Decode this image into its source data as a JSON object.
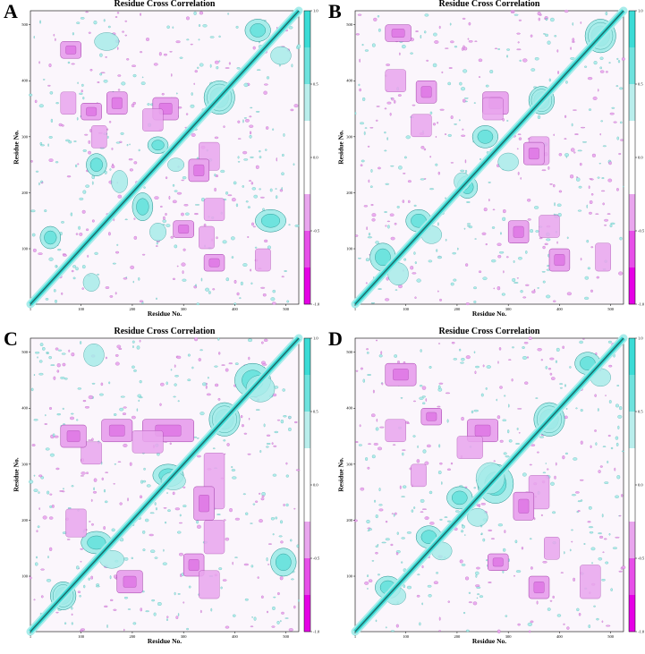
{
  "chart_data": [
    {
      "panel": "A",
      "type": "heatmap",
      "title": "Residue Cross Correlation",
      "xlabel": "Residue No.",
      "ylabel": "Residue No.",
      "xlim": [
        1,
        525
      ],
      "ylim": [
        1,
        525
      ],
      "x_ticks": [
        "1",
        "100",
        "200",
        "300",
        "400",
        "500"
      ],
      "y_ticks": [
        "100",
        "200",
        "300",
        "400",
        "500"
      ],
      "colorbar": {
        "range": [
          -1.0,
          1.0
        ],
        "ticks": [
          "1.0",
          "0.5",
          "0.0",
          "-0.5",
          "-1.0"
        ]
      },
      "positive_regions": [
        {
          "x": [
            340,
            400
          ],
          "y": [
            340,
            400
          ]
        },
        {
          "x": [
            230,
            270
          ],
          "y": [
            270,
            300
          ]
        },
        {
          "x": [
            200,
            240
          ],
          "y": [
            150,
            200
          ]
        },
        {
          "x": [
            110,
            150
          ],
          "y": [
            230,
            270
          ]
        },
        {
          "x": [
            20,
            60
          ],
          "y": [
            100,
            140
          ]
        },
        {
          "x": [
            420,
            470
          ],
          "y": [
            470,
            510
          ]
        },
        {
          "x": [
            440,
            500
          ],
          "y": [
            130,
            170
          ]
        }
      ],
      "negative_regions": [
        {
          "x": [
            240,
            290
          ],
          "y": [
            330,
            370
          ]
        },
        {
          "x": [
            310,
            350
          ],
          "y": [
            220,
            260
          ]
        },
        {
          "x": [
            150,
            190
          ],
          "y": [
            340,
            380
          ]
        },
        {
          "x": [
            100,
            140
          ],
          "y": [
            330,
            360
          ]
        },
        {
          "x": [
            340,
            380
          ],
          "y": [
            60,
            90
          ]
        },
        {
          "x": [
            60,
            100
          ],
          "y": [
            440,
            470
          ]
        },
        {
          "x": [
            280,
            320
          ],
          "y": [
            120,
            150
          ]
        }
      ]
    },
    {
      "panel": "B",
      "type": "heatmap",
      "title": "Residue Cross Correlation",
      "xlabel": "Residue No.",
      "ylabel": "Residue No.",
      "xlim": [
        1,
        525
      ],
      "ylim": [
        1,
        525
      ],
      "x_ticks": [
        "1",
        "100",
        "200",
        "300",
        "400",
        "500"
      ],
      "y_ticks": [
        "100",
        "200",
        "300",
        "400",
        "500"
      ],
      "colorbar": {
        "range": [
          -1.0,
          1.0
        ],
        "ticks": [
          "1.0",
          "0.5",
          "0.0",
          "-0.5",
          "-1.0"
        ]
      },
      "positive_regions": [
        {
          "x": [
            340,
            390
          ],
          "y": [
            340,
            390
          ]
        },
        {
          "x": [
            230,
            280
          ],
          "y": [
            280,
            320
          ]
        },
        {
          "x": [
            200,
            240
          ],
          "y": [
            190,
            230
          ]
        },
        {
          "x": [
            30,
            80
          ],
          "y": [
            60,
            110
          ]
        },
        {
          "x": [
            100,
            150
          ],
          "y": [
            130,
            170
          ]
        },
        {
          "x": [
            450,
            510
          ],
          "y": [
            450,
            510
          ]
        }
      ],
      "negative_regions": [
        {
          "x": [
            250,
            300
          ],
          "y": [
            340,
            380
          ]
        },
        {
          "x": [
            330,
            370
          ],
          "y": [
            250,
            290
          ]
        },
        {
          "x": [
            300,
            340
          ],
          "y": [
            110,
            150
          ]
        },
        {
          "x": [
            120,
            160
          ],
          "y": [
            360,
            400
          ]
        },
        {
          "x": [
            60,
            110
          ],
          "y": [
            470,
            500
          ]
        },
        {
          "x": [
            380,
            420
          ],
          "y": [
            60,
            100
          ]
        }
      ]
    },
    {
      "panel": "C",
      "type": "heatmap",
      "title": "Residue Cross Correlation",
      "xlabel": "Residue No.",
      "ylabel": "Residue No.",
      "xlim": [
        1,
        525
      ],
      "ylim": [
        1,
        525
      ],
      "x_ticks": [
        "1",
        "100",
        "200",
        "300",
        "400",
        "500"
      ],
      "y_ticks": [
        "100",
        "200",
        "300",
        "400",
        "500"
      ],
      "colorbar": {
        "range": [
          -1.0,
          1.0
        ],
        "ticks": [
          "1.0",
          "0.5",
          "0.0",
          "-0.5",
          "-1.0"
        ]
      },
      "positive_regions": [
        {
          "x": [
            350,
            410
          ],
          "y": [
            350,
            410
          ]
        },
        {
          "x": [
            400,
            470
          ],
          "y": [
            420,
            480
          ]
        },
        {
          "x": [
            240,
            300
          ],
          "y": [
            260,
            300
          ]
        },
        {
          "x": [
            100,
            160
          ],
          "y": [
            140,
            180
          ]
        },
        {
          "x": [
            40,
            90
          ],
          "y": [
            40,
            90
          ]
        },
        {
          "x": [
            470,
            520
          ],
          "y": [
            100,
            150
          ]
        }
      ],
      "negative_regions": [
        {
          "x": [
            220,
            320
          ],
          "y": [
            340,
            380
          ]
        },
        {
          "x": [
            140,
            200
          ],
          "y": [
            340,
            380
          ]
        },
        {
          "x": [
            320,
            360
          ],
          "y": [
            200,
            260
          ]
        },
        {
          "x": [
            300,
            340
          ],
          "y": [
            100,
            140
          ]
        },
        {
          "x": [
            60,
            110
          ],
          "y": [
            330,
            370
          ]
        },
        {
          "x": [
            170,
            220
          ],
          "y": [
            70,
            110
          ]
        }
      ]
    },
    {
      "panel": "D",
      "type": "heatmap",
      "title": "Residue Cross Correlation",
      "xlabel": "Residue No.",
      "ylabel": "Residue No.",
      "xlim": [
        1,
        525
      ],
      "ylim": [
        1,
        525
      ],
      "x_ticks": [
        "1",
        "100",
        "200",
        "300",
        "400",
        "500"
      ],
      "y_ticks": [
        "100",
        "200",
        "300",
        "400",
        "500"
      ],
      "colorbar": {
        "range": [
          -1.0,
          1.0
        ],
        "ticks": [
          "1.0",
          "0.5",
          "0.0",
          "-0.5",
          "-1.0"
        ]
      },
      "positive_regions": [
        {
          "x": [
            240,
            310
          ],
          "y": [
            230,
            300
          ]
        },
        {
          "x": [
            350,
            410
          ],
          "y": [
            350,
            410
          ]
        },
        {
          "x": [
            180,
            230
          ],
          "y": [
            220,
            260
          ]
        },
        {
          "x": [
            120,
            170
          ],
          "y": [
            150,
            190
          ]
        },
        {
          "x": [
            40,
            90
          ],
          "y": [
            60,
            100
          ]
        },
        {
          "x": [
            430,
            480
          ],
          "y": [
            460,
            500
          ]
        }
      ],
      "negative_regions": [
        {
          "x": [
            220,
            280
          ],
          "y": [
            340,
            380
          ]
        },
        {
          "x": [
            310,
            350
          ],
          "y": [
            200,
            250
          ]
        },
        {
          "x": [
            60,
            120
          ],
          "y": [
            440,
            480
          ]
        },
        {
          "x": [
            340,
            380
          ],
          "y": [
            60,
            100
          ]
        },
        {
          "x": [
            130,
            170
          ],
          "y": [
            370,
            400
          ]
        },
        {
          "x": [
            260,
            300
          ],
          "y": [
            110,
            140
          ]
        }
      ]
    }
  ]
}
